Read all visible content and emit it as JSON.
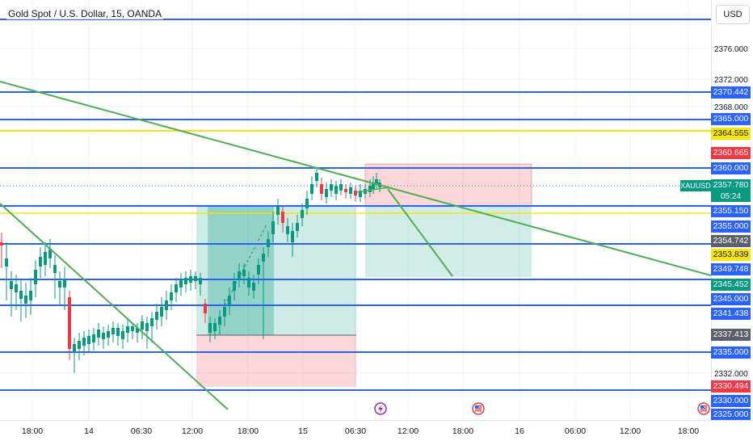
{
  "header": {
    "title": "Gold Spot / U.S. Dollar, 15, OANDA",
    "currency": "USD"
  },
  "symbol_tag": "XAUUSD",
  "countdown": "05:24",
  "current_price": "2357.780",
  "axis_ticks": [
    "2376.000",
    "2372.000",
    "2368.000",
    "2332.000"
  ],
  "price_labels": [
    {
      "value": "2370.442",
      "color": "#2962ff"
    },
    {
      "value": "2365.000",
      "color": "#2962ff"
    },
    {
      "value": "2364.555",
      "color": "#f5e50a",
      "text_color": "#131722"
    },
    {
      "value": "2360.665",
      "color": "#f23645"
    },
    {
      "value": "2360.000",
      "color": "#2962ff"
    },
    {
      "value": "2357.780",
      "color": "#089981"
    },
    {
      "value": "2355.150",
      "color": "#2962ff"
    },
    {
      "value": "2355.000",
      "color": "#2962ff"
    },
    {
      "value": "2354.742",
      "color": "#5d606b"
    },
    {
      "value": "2353.839",
      "color": "#f5e50a",
      "text_color": "#131722"
    },
    {
      "value": "2349.748",
      "color": "#2962ff"
    },
    {
      "value": "2345.452",
      "color": "#089981"
    },
    {
      "value": "2345.000",
      "color": "#2962ff"
    },
    {
      "value": "2341.438",
      "color": "#2962ff"
    },
    {
      "value": "2337.413",
      "color": "#5d606b"
    },
    {
      "value": "2335.000",
      "color": "#2962ff"
    },
    {
      "value": "2330.494",
      "color": "#f23645"
    },
    {
      "value": "2330.000",
      "color": "#2962ff"
    },
    {
      "value": "2325.000",
      "color": "#2962ff"
    }
  ],
  "time_ticks": [
    "18:00",
    "14",
    "06:30",
    "12:00",
    "18:00",
    "15",
    "06:30",
    "12:00",
    "18:00",
    "16",
    "06:00",
    "12:00",
    "18:00"
  ],
  "colors": {
    "up": "#089981",
    "down": "#f23645",
    "hline": "#2962ff",
    "trend": "#4caf50",
    "yellow": "#f5e50a"
  },
  "events": [
    "lightning-event-icon",
    "us-flag-event-icon",
    "us-flag-event-icon"
  ]
}
